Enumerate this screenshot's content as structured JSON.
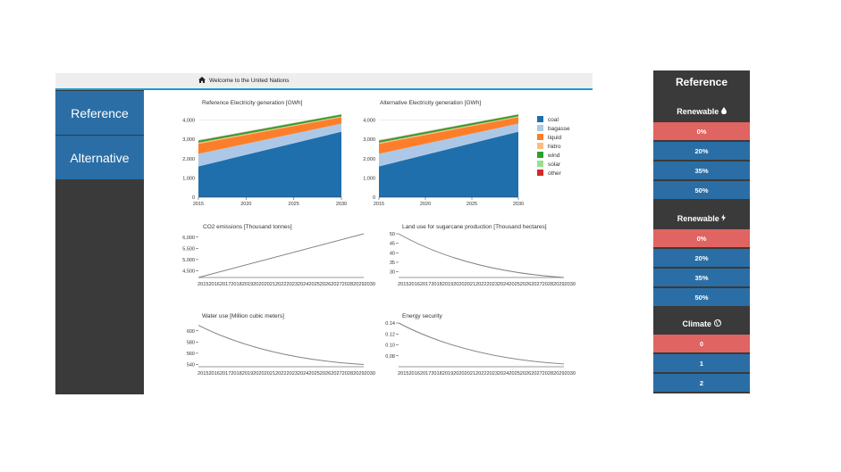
{
  "header": {
    "home_icon": "home-icon",
    "welcome": "Welcome to the United Nations"
  },
  "nav": {
    "items": [
      {
        "label": "Reference"
      },
      {
        "label": "Alternative"
      }
    ]
  },
  "colors": {
    "accent": "#1a9bd7",
    "nav_active": "#2a6ea5",
    "selected": "#e06461",
    "panel": "#3a3a3a"
  },
  "panel": {
    "title": "Reference",
    "sections": [
      {
        "label": "Renewable",
        "icon": "droplet-icon",
        "options": [
          "0%",
          "20%",
          "35%",
          "50%"
        ],
        "selected": 0
      },
      {
        "label": "Renewable",
        "icon": "lightning-icon",
        "options": [
          "0%",
          "20%",
          "35%",
          "50%"
        ],
        "selected": 0
      },
      {
        "label": "Climate",
        "icon": "globe-icon",
        "options": [
          "0",
          "1",
          "2"
        ],
        "selected": 0
      }
    ]
  },
  "legend": [
    {
      "name": "coal",
      "color": "#1f6fad"
    },
    {
      "name": "bagasse",
      "color": "#adc8e6"
    },
    {
      "name": "liquid",
      "color": "#fd7e2a"
    },
    {
      "name": "hidro",
      "color": "#fdbb84"
    },
    {
      "name": "wind",
      "color": "#2ca02c"
    },
    {
      "name": "solar",
      "color": "#98df8a"
    },
    {
      "name": "other",
      "color": "#d62728"
    }
  ],
  "chart_data": [
    {
      "type": "area",
      "title": "Reference Electricity generation [GWh]",
      "x": [
        2015,
        2030
      ],
      "xticks": [
        2015,
        2020,
        2025,
        2030
      ],
      "yticks": [
        "0",
        "1,000",
        "2,000",
        "3,000",
        "4,000"
      ],
      "ylim": [
        0,
        4400
      ],
      "series": [
        {
          "name": "coal",
          "values": [
            1600,
            3400
          ]
        },
        {
          "name": "bagasse",
          "values": [
            650,
            420
          ]
        },
        {
          "name": "liquid",
          "values": [
            520,
            330
          ]
        },
        {
          "name": "hidro",
          "values": [
            60,
            50
          ]
        },
        {
          "name": "wind",
          "values": [
            100,
            90
          ]
        },
        {
          "name": "solar",
          "values": [
            10,
            10
          ]
        },
        {
          "name": "other",
          "values": [
            10,
            10
          ]
        }
      ]
    },
    {
      "type": "area",
      "title": "Alternative Electricity generation [GWh]",
      "x": [
        2015,
        2030
      ],
      "xticks": [
        2015,
        2020,
        2025,
        2030
      ],
      "yticks": [
        "0",
        "1,000",
        "2,000",
        "3,000",
        "4,000"
      ],
      "ylim": [
        0,
        4400
      ],
      "series": [
        {
          "name": "coal",
          "values": [
            1600,
            3400
          ]
        },
        {
          "name": "bagasse",
          "values": [
            650,
            420
          ]
        },
        {
          "name": "liquid",
          "values": [
            520,
            330
          ]
        },
        {
          "name": "hidro",
          "values": [
            60,
            50
          ]
        },
        {
          "name": "wind",
          "values": [
            100,
            90
          ]
        },
        {
          "name": "solar",
          "values": [
            10,
            10
          ]
        },
        {
          "name": "other",
          "values": [
            10,
            10
          ]
        }
      ]
    },
    {
      "type": "line",
      "title": "CO2 emissions [Thousand tonnes]",
      "x": [
        2015,
        2030
      ],
      "values": [
        4200,
        6150
      ],
      "ylim": [
        4200,
        6150
      ],
      "yticks": [
        "4,500",
        "5,000",
        "5,500",
        "6,000"
      ],
      "xticklabel": "2015201620172018201920202021202220232024202520262027202820292030"
    },
    {
      "type": "line",
      "title": "Land use for sugarcane production [Thousand hectares]",
      "x": [
        2015,
        2030
      ],
      "values": [
        50,
        27
      ],
      "ylim": [
        27,
        50
      ],
      "yticks": [
        "30",
        "35",
        "40",
        "45",
        "50"
      ],
      "xticklabel": "2015201620172018201920202021202220232024202520262027202820292030"
    },
    {
      "type": "line",
      "title": "Water use [Million cubic meters]",
      "x": [
        2015,
        2030
      ],
      "values": [
        610,
        540
      ],
      "ylim": [
        536,
        614
      ],
      "yticks": [
        "540",
        "560",
        "580",
        "600"
      ],
      "xticklabel": "2015201620172018201920202021202220232024202520262027202820292030"
    },
    {
      "type": "line",
      "title": "Energy security",
      "x": [
        2015,
        2030
      ],
      "values": [
        0.14,
        0.065
      ],
      "ylim": [
        0.06,
        0.14
      ],
      "yticks": [
        "0.08",
        "0.10",
        "0.12",
        "0.14"
      ],
      "xticklabel": "2015201620172018201920202021202220232024202520262027202820292030"
    }
  ]
}
